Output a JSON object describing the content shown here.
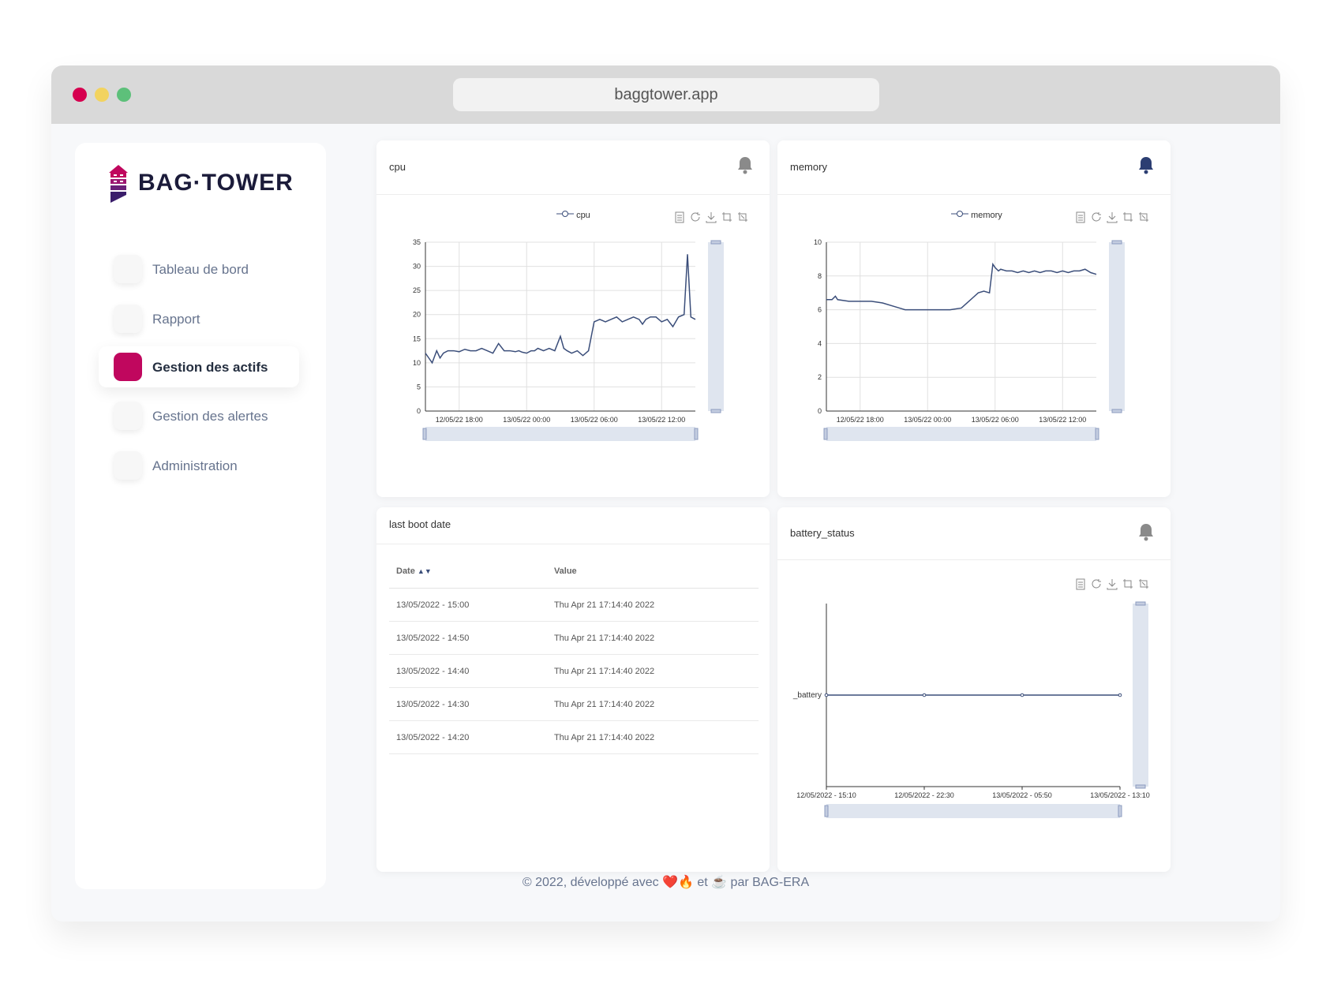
{
  "browser": {
    "url": "baggtower.app"
  },
  "brand": {
    "name": "BAG·TOWER",
    "accent": "#c0075e",
    "dark": "#1b1b3a"
  },
  "sidebar": {
    "items": [
      {
        "label": "Tableau de bord",
        "active": false
      },
      {
        "label": "Rapport",
        "active": false
      },
      {
        "label": "Gestion des actifs",
        "active": true
      },
      {
        "label": "Gestion des alertes",
        "active": false
      },
      {
        "label": "Administration",
        "active": false
      }
    ]
  },
  "cards": {
    "cpu": {
      "title": "cpu",
      "bell": "bell-icon",
      "bell_active": false
    },
    "memory": {
      "title": "memory",
      "bell": "bell-icon",
      "bell_active": true
    },
    "boot": {
      "title": "last boot date"
    },
    "battery": {
      "title": "battery_status",
      "bell": "bell-icon",
      "bell_active": false
    }
  },
  "toolbox_icons": [
    "data-view-icon",
    "restore-icon",
    "save-image-icon",
    "zoom-icon",
    "zoom-reset-icon"
  ],
  "boot_table": {
    "headers": [
      "Date",
      "Value"
    ],
    "rows": [
      [
        "13/05/2022 - 15:00",
        "Thu Apr 21 17:14:40 2022"
      ],
      [
        "13/05/2022 - 14:50",
        "Thu Apr 21 17:14:40 2022"
      ],
      [
        "13/05/2022 - 14:40",
        "Thu Apr 21 17:14:40 2022"
      ],
      [
        "13/05/2022 - 14:30",
        "Thu Apr 21 17:14:40 2022"
      ],
      [
        "13/05/2022 - 14:20",
        "Thu Apr 21 17:14:40 2022"
      ]
    ]
  },
  "chart_data": [
    {
      "type": "line",
      "title": "cpu",
      "series": [
        {
          "name": "cpu",
          "color": "#3b4e7a",
          "x": [
            0,
            0.3,
            0.6,
            1,
            1.3,
            1.6,
            2,
            2.5,
            3,
            3.5,
            4,
            4.5,
            5,
            5.5,
            6,
            6.5,
            7,
            7.5,
            8,
            8.3,
            8.6,
            9,
            9.4,
            9.7,
            10,
            10.5,
            11,
            11.5,
            12,
            12.3,
            12.6,
            13,
            13.5,
            14,
            14.5,
            15,
            15.5,
            16,
            16.5,
            17,
            17.5,
            18,
            18.5,
            19,
            19.3,
            19.6,
            20,
            20.5,
            21,
            21.5,
            22,
            22.5,
            23,
            23.3,
            23.6,
            24
          ],
          "values": [
            12,
            11,
            10,
            12.5,
            11,
            12,
            12.5,
            12.5,
            12.3,
            12.8,
            12.5,
            12.5,
            13,
            12.5,
            12,
            14,
            12.5,
            12.5,
            12.3,
            12.5,
            12.2,
            12,
            12.5,
            12.5,
            13,
            12.5,
            13,
            12.5,
            15.5,
            13,
            12.5,
            12,
            12.5,
            11.5,
            12.5,
            18.5,
            19,
            18.5,
            19,
            19.5,
            18.5,
            19,
            19.5,
            19,
            18,
            19,
            19.5,
            19.5,
            18.5,
            19,
            17.5,
            19.5,
            20,
            32.5,
            19.5,
            19
          ]
        }
      ],
      "x_ticks": [
        "12/05/22 18:00",
        "13/05/22 00:00",
        "13/05/22 06:00",
        "13/05/22 12:00"
      ],
      "x_tick_pos": [
        3,
        9,
        15,
        21
      ],
      "xlim": [
        0,
        24
      ],
      "ylim": [
        0,
        35
      ],
      "y_ticks": [
        0,
        5,
        10,
        15,
        20,
        25,
        30,
        35
      ],
      "grid": true,
      "legend": "top-center"
    },
    {
      "type": "line",
      "title": "memory",
      "series": [
        {
          "name": "memory",
          "color": "#3b4e7a",
          "x": [
            0,
            0.5,
            0.8,
            1,
            2,
            3,
            4,
            5,
            6,
            7,
            8,
            9,
            10,
            11,
            12,
            13,
            13.5,
            14,
            14.5,
            14.8,
            15,
            15.3,
            15.5,
            16,
            16.5,
            17,
            17.5,
            18,
            18.5,
            19,
            19.5,
            20,
            20.5,
            21,
            21.5,
            22,
            22.5,
            23,
            23.5,
            24
          ],
          "values": [
            6.6,
            6.6,
            6.8,
            6.6,
            6.5,
            6.5,
            6.5,
            6.4,
            6.2,
            6.0,
            6.0,
            6.0,
            6.0,
            6.0,
            6.1,
            6.7,
            7.0,
            7.1,
            7.0,
            8.7,
            8.5,
            8.3,
            8.4,
            8.3,
            8.3,
            8.2,
            8.3,
            8.2,
            8.3,
            8.2,
            8.3,
            8.3,
            8.2,
            8.3,
            8.2,
            8.3,
            8.3,
            8.4,
            8.2,
            8.1
          ]
        }
      ],
      "x_ticks": [
        "12/05/22 18:00",
        "13/05/22 00:00",
        "13/05/22 06:00",
        "13/05/22 12:00"
      ],
      "x_tick_pos": [
        3,
        9,
        15,
        21
      ],
      "xlim": [
        0,
        24
      ],
      "ylim": [
        0,
        10
      ],
      "y_ticks": [
        0,
        2,
        4,
        6,
        8,
        10
      ],
      "grid": true,
      "legend": "top-center"
    },
    {
      "type": "line",
      "title": "battery_status",
      "categories": [
        "12/05/2022 - 15:10",
        "12/05/2022 - 22:30",
        "13/05/2022 - 05:50",
        "13/05/2022 - 13:10"
      ],
      "y_category": "_battery",
      "series": [
        {
          "color": "#3b4e7a",
          "values": [
            1,
            1,
            1,
            1
          ]
        }
      ],
      "grid": false
    }
  ],
  "footer": {
    "text": "© 2022, développé  avec ❤️🔥 et  ☕ par BAG-ERA"
  }
}
